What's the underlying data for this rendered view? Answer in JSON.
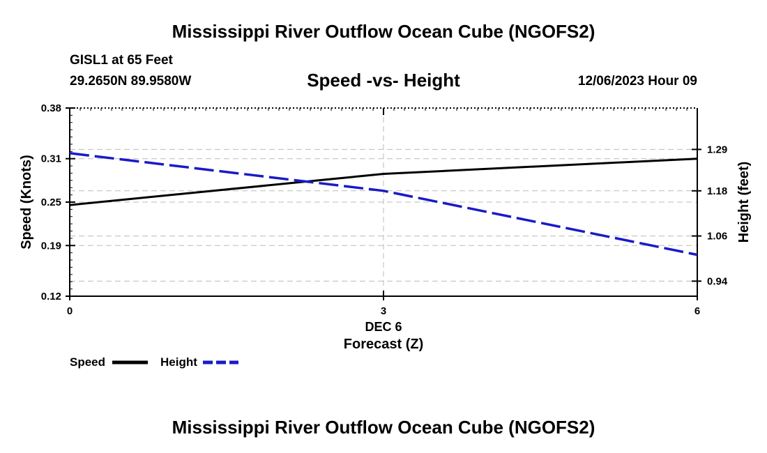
{
  "header": {
    "title": "Mississippi River Outflow Ocean Cube (NGOFS2)",
    "station": "GISL1 at 65 Feet",
    "coords": "29.2650N  89.9580W",
    "subtitle": "Speed -vs- Height",
    "datetime": "12/06/2023 Hour 09"
  },
  "footer": {
    "title": "Mississippi River Outflow Ocean Cube (NGOFS2)"
  },
  "chart_data": {
    "type": "line",
    "title": "Speed -vs- Height",
    "xlabel": "Forecast (Z)",
    "x_date_label": "DEC 6",
    "ylabel": "Speed (Knots)",
    "y2label": "Height (feet)",
    "xlim": [
      0,
      6
    ],
    "x_ticks": [
      0,
      3,
      6
    ],
    "x_tick_labels": [
      "0",
      "3",
      "6"
    ],
    "ylim": [
      0.12,
      0.38
    ],
    "y_ticks": [
      0.12,
      0.19,
      0.25,
      0.31,
      0.38
    ],
    "y_tick_labels": [
      "0.12",
      "0.19",
      "0.25",
      "0.31",
      "0.38"
    ],
    "y2lim": [
      0.9,
      1.4
    ],
    "y2_ticks": [
      0.94,
      1.06,
      1.18,
      1.29
    ],
    "y2_tick_labels": [
      "0.94",
      "1.06",
      "1.18",
      "1.29"
    ],
    "grid": true,
    "legend_position": "bottom-left",
    "series": [
      {
        "name": "Speed",
        "axis": "left",
        "color": "#000000",
        "dash": "solid",
        "x": [
          0,
          3,
          6
        ],
        "values": [
          0.246,
          0.289,
          0.31
        ]
      },
      {
        "name": "Height",
        "axis": "right",
        "color": "#1a1ac8",
        "dash": "dashed",
        "x": [
          0,
          3,
          6
        ],
        "values": [
          1.28,
          1.18,
          1.01
        ]
      }
    ]
  }
}
